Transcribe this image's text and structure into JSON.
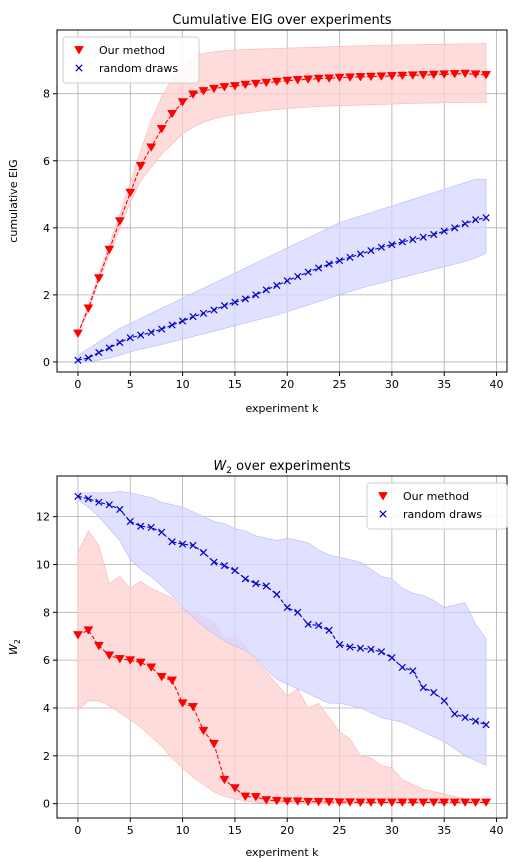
{
  "chart_data": [
    {
      "type": "line",
      "title": "Cumulative EIG over experiments",
      "xlabel": "experiment k",
      "ylabel": "cumulative EIG",
      "xlim": [
        -2,
        41
      ],
      "ylim": [
        -0.3,
        9.9
      ],
      "xticks": [
        0,
        5,
        10,
        15,
        20,
        25,
        30,
        35,
        40
      ],
      "yticks": [
        0,
        2,
        4,
        6,
        8
      ],
      "grid": true,
      "legend_position": "top-left",
      "x": [
        0,
        1,
        2,
        3,
        4,
        5,
        6,
        7,
        8,
        9,
        10,
        11,
        12,
        13,
        14,
        15,
        16,
        17,
        18,
        19,
        20,
        21,
        22,
        23,
        24,
        25,
        26,
        27,
        28,
        29,
        30,
        31,
        32,
        33,
        34,
        35,
        36,
        37,
        38,
        39
      ],
      "series": [
        {
          "name": "Our method",
          "color": "#ff0000",
          "marker": "triangle-down",
          "values": [
            0.85,
            1.6,
            2.5,
            3.35,
            4.2,
            5.05,
            5.85,
            6.4,
            6.95,
            7.4,
            7.75,
            7.98,
            8.08,
            8.15,
            8.2,
            8.23,
            8.27,
            8.3,
            8.33,
            8.36,
            8.39,
            8.41,
            8.43,
            8.45,
            8.46,
            8.48,
            8.49,
            8.5,
            8.51,
            8.52,
            8.53,
            8.54,
            8.55,
            8.56,
            8.57,
            8.58,
            8.59,
            8.6,
            8.58,
            8.56
          ],
          "band_upper": [
            0.85,
            1.7,
            2.6,
            3.5,
            4.4,
            5.35,
            6.3,
            7.2,
            7.9,
            8.45,
            8.85,
            9.1,
            9.2,
            9.25,
            9.28,
            9.3,
            9.32,
            9.33,
            9.34,
            9.35,
            9.36,
            9.37,
            9.38,
            9.39,
            9.4,
            9.41,
            9.42,
            9.43,
            9.44,
            9.45,
            9.45,
            9.46,
            9.46,
            9.47,
            9.47,
            9.48,
            9.48,
            9.49,
            9.49,
            9.5
          ],
          "band_lower": [
            0.85,
            1.5,
            2.4,
            3.2,
            4.0,
            4.75,
            5.4,
            5.8,
            6.2,
            6.5,
            6.8,
            7.0,
            7.15,
            7.25,
            7.32,
            7.38,
            7.42,
            7.46,
            7.5,
            7.53,
            7.56,
            7.58,
            7.6,
            7.62,
            7.63,
            7.64,
            7.65,
            7.66,
            7.67,
            7.68,
            7.69,
            7.7,
            7.71,
            7.72,
            7.72,
            7.73,
            7.73,
            7.74,
            7.74,
            7.74
          ]
        },
        {
          "name": "random draws",
          "color": "#0000cc",
          "marker": "x",
          "values": [
            0.05,
            0.12,
            0.28,
            0.42,
            0.58,
            0.72,
            0.8,
            0.88,
            0.98,
            1.1,
            1.22,
            1.35,
            1.45,
            1.55,
            1.68,
            1.78,
            1.88,
            2.0,
            2.15,
            2.28,
            2.42,
            2.55,
            2.68,
            2.8,
            2.92,
            3.02,
            3.12,
            3.22,
            3.32,
            3.42,
            3.5,
            3.58,
            3.65,
            3.72,
            3.8,
            3.9,
            4.0,
            4.12,
            4.24,
            4.3
          ],
          "band_upper": [
            0.2,
            0.4,
            0.6,
            0.8,
            1.0,
            1.15,
            1.3,
            1.45,
            1.6,
            1.75,
            1.9,
            2.05,
            2.2,
            2.35,
            2.5,
            2.65,
            2.8,
            2.95,
            3.1,
            3.25,
            3.4,
            3.55,
            3.7,
            3.85,
            4.0,
            4.15,
            4.25,
            4.35,
            4.45,
            4.55,
            4.65,
            4.75,
            4.85,
            4.95,
            5.05,
            5.15,
            5.25,
            5.35,
            5.45,
            5.45
          ],
          "band_lower": [
            0.0,
            0.0,
            0.05,
            0.12,
            0.2,
            0.3,
            0.38,
            0.45,
            0.52,
            0.6,
            0.68,
            0.76,
            0.84,
            0.92,
            1.0,
            1.08,
            1.16,
            1.24,
            1.32,
            1.4,
            1.5,
            1.6,
            1.7,
            1.8,
            1.9,
            2.0,
            2.1,
            2.2,
            2.28,
            2.36,
            2.44,
            2.52,
            2.6,
            2.68,
            2.76,
            2.84,
            2.92,
            3.0,
            3.1,
            3.25
          ]
        }
      ]
    },
    {
      "type": "line",
      "title_main": "W",
      "title_sub": "2",
      "title_rest": " over experiments",
      "xlabel": "experiment k",
      "ylabel_main": "W",
      "ylabel_sub": "2",
      "xlim": [
        -2,
        41
      ],
      "ylim": [
        -0.6,
        13.7
      ],
      "xticks": [
        0,
        5,
        10,
        15,
        20,
        25,
        30,
        35,
        40
      ],
      "yticks": [
        0,
        2,
        4,
        6,
        8,
        10,
        12
      ],
      "grid": true,
      "legend_position": "top-right",
      "x": [
        0,
        1,
        2,
        3,
        4,
        5,
        6,
        7,
        8,
        9,
        10,
        11,
        12,
        13,
        14,
        15,
        16,
        17,
        18,
        19,
        20,
        21,
        22,
        23,
        24,
        25,
        26,
        27,
        28,
        29,
        30,
        31,
        32,
        33,
        34,
        35,
        36,
        37,
        38,
        39
      ],
      "series": [
        {
          "name": "Our method",
          "color": "#ff0000",
          "marker": "triangle-down",
          "values": [
            7.05,
            7.25,
            6.6,
            6.2,
            6.05,
            6.0,
            5.9,
            5.7,
            5.3,
            5.15,
            4.2,
            4.05,
            3.05,
            2.5,
            1.0,
            0.65,
            0.3,
            0.28,
            0.15,
            0.12,
            0.1,
            0.1,
            0.08,
            0.08,
            0.07,
            0.06,
            0.06,
            0.05,
            0.05,
            0.05,
            0.05,
            0.05,
            0.05,
            0.05,
            0.05,
            0.05,
            0.05,
            0.05,
            0.05,
            0.05
          ],
          "band_upper": [
            10.5,
            11.4,
            10.8,
            9.2,
            9.5,
            9.0,
            9.3,
            9.0,
            8.8,
            8.6,
            8.1,
            8.0,
            7.8,
            7.6,
            6.9,
            7.0,
            6.6,
            6.0,
            5.5,
            5.0,
            4.5,
            4.8,
            4.0,
            4.2,
            3.6,
            3.0,
            2.7,
            2.0,
            1.9,
            1.6,
            1.5,
            1.0,
            0.8,
            0.6,
            0.5,
            0.4,
            0.3,
            0.2,
            0.15,
            0.1
          ],
          "band_lower": [
            3.9,
            4.3,
            4.3,
            4.1,
            3.8,
            3.5,
            3.2,
            2.8,
            2.4,
            1.9,
            1.5,
            1.1,
            0.8,
            0.5,
            0.3,
            0.2,
            0.1,
            0.05,
            0.02,
            0,
            0,
            0,
            0,
            0,
            0,
            0,
            0,
            0,
            0,
            0,
            0,
            0,
            0,
            0,
            0,
            0,
            0,
            0,
            0,
            0
          ]
        },
        {
          "name": "random draws",
          "color": "#0000cc",
          "marker": "x",
          "values": [
            12.85,
            12.75,
            12.6,
            12.5,
            12.3,
            11.8,
            11.6,
            11.55,
            11.35,
            10.95,
            10.85,
            10.8,
            10.5,
            10.1,
            9.95,
            9.75,
            9.4,
            9.2,
            9.1,
            8.75,
            8.2,
            8.0,
            7.5,
            7.45,
            7.25,
            6.65,
            6.55,
            6.5,
            6.45,
            6.35,
            6.1,
            5.7,
            5.55,
            4.85,
            4.65,
            4.3,
            3.75,
            3.6,
            3.45,
            3.3
          ],
          "band_upper": [
            13.0,
            13.0,
            13.0,
            13.0,
            13.05,
            13.0,
            12.9,
            12.8,
            12.6,
            12.5,
            12.4,
            12.2,
            12.0,
            11.8,
            11.7,
            11.5,
            11.4,
            11.2,
            11.1,
            11.0,
            11.1,
            11.0,
            10.9,
            10.6,
            10.4,
            10.3,
            10.2,
            10.1,
            9.8,
            9.5,
            9.4,
            9.0,
            8.8,
            8.7,
            8.5,
            8.2,
            8.3,
            8.4,
            7.5,
            6.9
          ],
          "band_lower": [
            12.7,
            12.4,
            12.0,
            11.5,
            11.0,
            10.2,
            9.8,
            9.5,
            9.1,
            8.7,
            8.2,
            7.8,
            7.4,
            7.1,
            6.8,
            6.6,
            6.4,
            6.1,
            5.6,
            5.2,
            5.0,
            4.8,
            4.6,
            4.4,
            4.2,
            4.2,
            4.1,
            4.0,
            3.8,
            3.6,
            3.5,
            3.4,
            3.2,
            3.0,
            2.8,
            2.6,
            2.3,
            2.0,
            1.8,
            1.6
          ]
        }
      ]
    }
  ]
}
